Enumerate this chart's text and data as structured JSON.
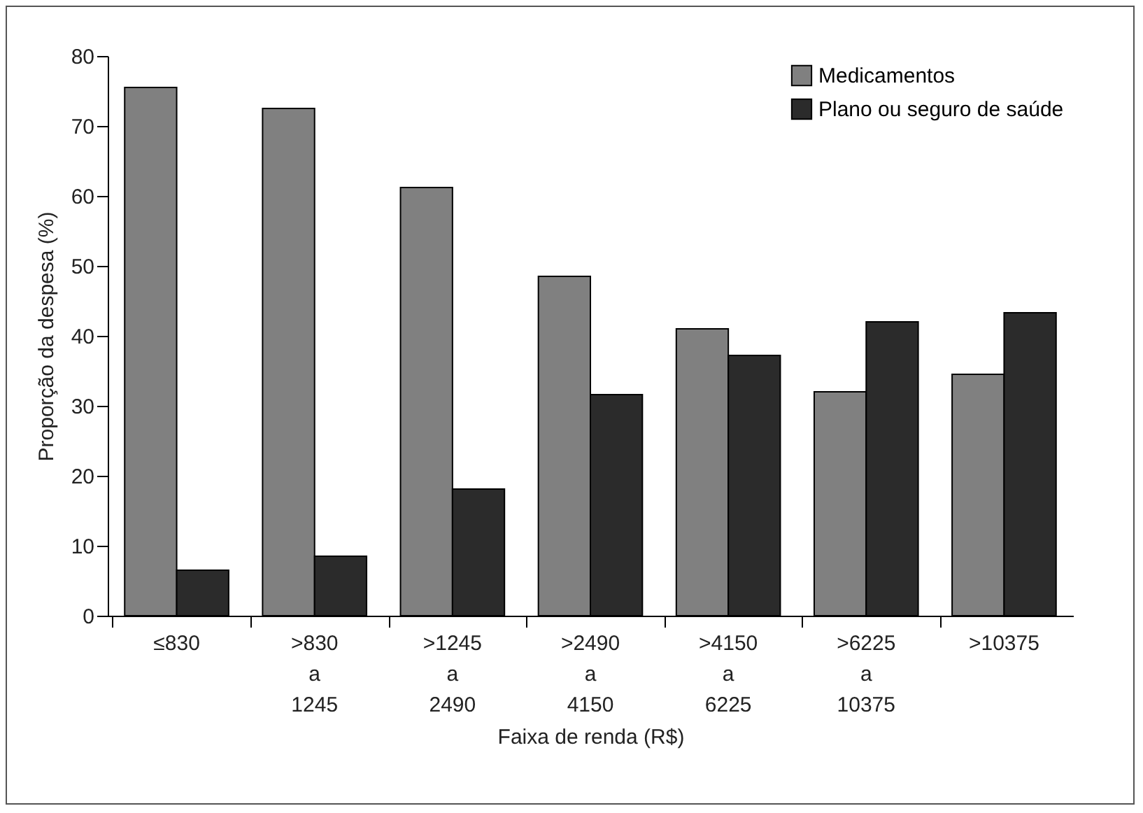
{
  "chart_data": {
    "type": "bar",
    "xlabel": "Faixa de renda (R$)",
    "ylabel": "Proporção da despesa (%)",
    "categories": [
      "≤830",
      ">830 a 1245",
      ">1245 a 2490",
      ">2490 a 4150",
      ">4150 a 6225",
      ">6225 a 10375",
      ">10375"
    ],
    "series": [
      {
        "name": "Medicamentos",
        "color": "#808080",
        "values": [
          75.5,
          72.5,
          61.2,
          48.5,
          41,
          32,
          34.5
        ]
      },
      {
        "name": "Plano ou seguro de saúde",
        "color": "#2b2b2b",
        "values": [
          6.5,
          8.5,
          18.1,
          31.6,
          37.2,
          42,
          43.3
        ]
      }
    ],
    "ylim": [
      0,
      80
    ],
    "yticks": [
      0,
      10,
      20,
      30,
      40,
      50,
      60,
      70,
      80
    ],
    "grid": false,
    "legend": "top right"
  }
}
